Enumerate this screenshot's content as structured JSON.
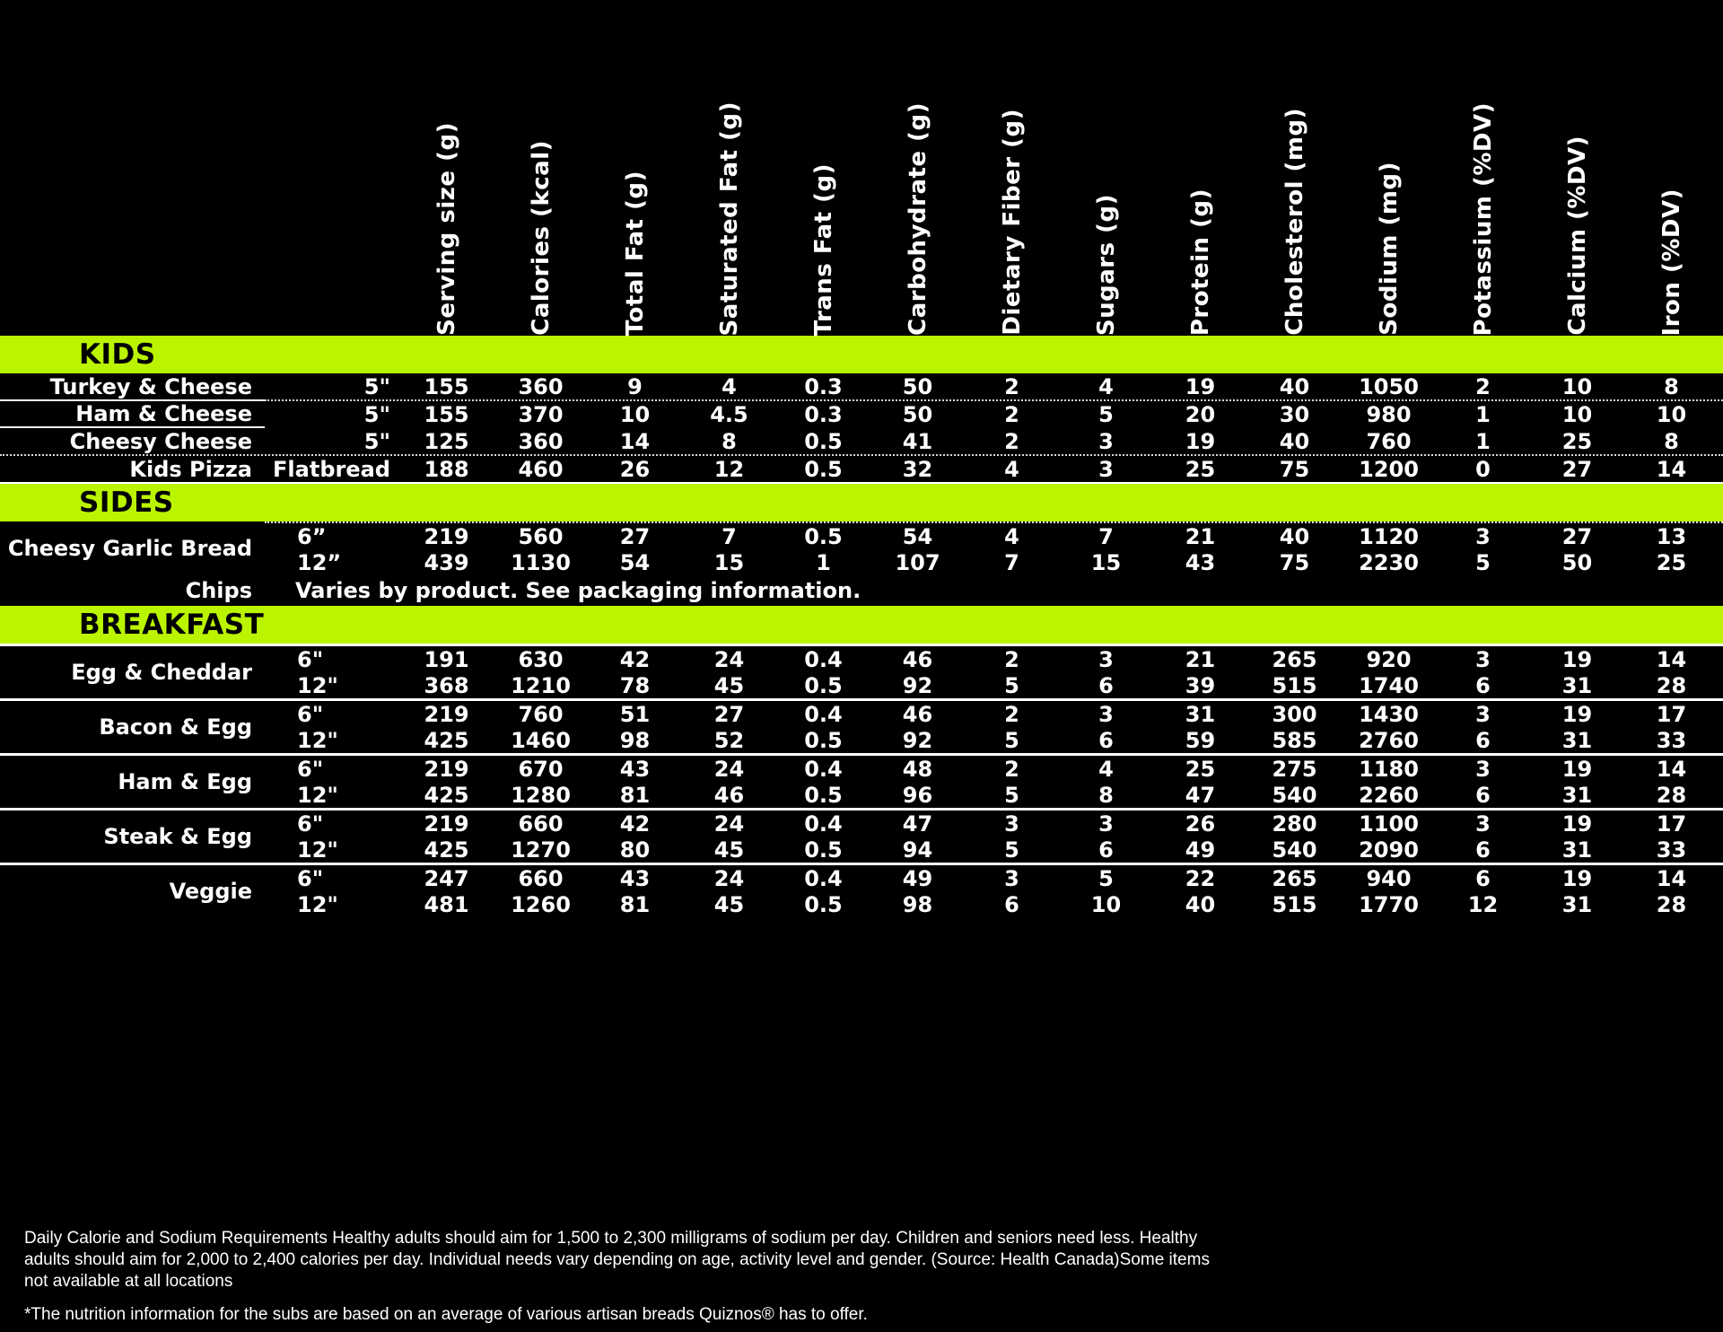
{
  "colors": {
    "background": "#000000",
    "section_bar": "#baf400",
    "section_title_text": "#000000",
    "table_text": "#ffffff"
  },
  "columns": [
    "Serving size (g)",
    "Calories (kcal)",
    "Total Fat (g)",
    "Saturated Fat (g)",
    "Trans Fat (g)",
    "Carbohydrate (g)",
    "Dietary Fiber (g)",
    "Sugars (g)",
    "Protein (g)",
    "Cholesterol (mg)",
    "Sodium (mg)",
    "Potassium (%DV)",
    "Calcium (%DV)",
    "Iron (%DV)"
  ],
  "sections": [
    {
      "id": "kids",
      "title": "KIDS",
      "groups": [
        {
          "label": "Turkey & Cheese",
          "rows": [
            {
              "size": "5\"",
              "values": [
                "155",
                "360",
                "9",
                "4",
                "0.3",
                "50",
                "2",
                "4",
                "19",
                "40",
                "1050",
                "2",
                "10",
                "8"
              ]
            }
          ]
        },
        {
          "label": "Ham & Cheese",
          "rows": [
            {
              "size": "5\"",
              "values": [
                "155",
                "370",
                "10",
                "4.5",
                "0.3",
                "50",
                "2",
                "5",
                "20",
                "30",
                "980",
                "1",
                "10",
                "10"
              ]
            }
          ]
        },
        {
          "label": "Cheesy Cheese",
          "rows": [
            {
              "size": "5\"",
              "values": [
                "125",
                "360",
                "14",
                "8",
                "0.5",
                "41",
                "2",
                "3",
                "19",
                "40",
                "760",
                "1",
                "25",
                "8"
              ]
            }
          ]
        },
        {
          "label": "Kids Pizza",
          "rows": [
            {
              "size": "Flatbread",
              "values": [
                "188",
                "460",
                "26",
                "12",
                "0.5",
                "32",
                "4",
                "3",
                "25",
                "75",
                "1200",
                "0",
                "27",
                "14"
              ]
            }
          ]
        }
      ]
    },
    {
      "id": "sides",
      "title": "SIDES",
      "groups": [
        {
          "label": "Cheesy Garlic Bread",
          "rows": [
            {
              "size": "6”",
              "values": [
                "219",
                "560",
                "27",
                "7",
                "0.5",
                "54",
                "4",
                "7",
                "21",
                "40",
                "1120",
                "3",
                "27",
                "13"
              ]
            },
            {
              "size": "12”",
              "values": [
                "439",
                "1130",
                "54",
                "15",
                "1",
                "107",
                "7",
                "15",
                "43",
                "75",
                "2230",
                "5",
                "50",
                "25"
              ]
            }
          ]
        },
        {
          "label": "Chips",
          "note": "Varies by product. See packaging information.",
          "rows": []
        }
      ]
    },
    {
      "id": "breakfast",
      "title": "BREAKFAST",
      "groups": [
        {
          "label": "Egg & Cheddar",
          "rows": [
            {
              "size": "6\"",
              "values": [
                "191",
                "630",
                "42",
                "24",
                "0.4",
                "46",
                "2",
                "3",
                "21",
                "265",
                "920",
                "3",
                "19",
                "14"
              ]
            },
            {
              "size": "12\"",
              "values": [
                "368",
                "1210",
                "78",
                "45",
                "0.5",
                "92",
                "5",
                "6",
                "39",
                "515",
                "1740",
                "6",
                "31",
                "28"
              ]
            }
          ]
        },
        {
          "label": "Bacon & Egg",
          "rows": [
            {
              "size": "6\"",
              "values": [
                "219",
                "760",
                "51",
                "27",
                "0.4",
                "46",
                "2",
                "3",
                "31",
                "300",
                "1430",
                "3",
                "19",
                "17"
              ]
            },
            {
              "size": "12\"",
              "values": [
                "425",
                "1460",
                "98",
                "52",
                "0.5",
                "92",
                "5",
                "6",
                "59",
                "585",
                "2760",
                "6",
                "31",
                "33"
              ]
            }
          ]
        },
        {
          "label": "Ham & Egg",
          "rows": [
            {
              "size": "6\"",
              "values": [
                "219",
                "670",
                "43",
                "24",
                "0.4",
                "48",
                "2",
                "4",
                "25",
                "275",
                "1180",
                "3",
                "19",
                "14"
              ]
            },
            {
              "size": "12\"",
              "values": [
                "425",
                "1280",
                "81",
                "46",
                "0.5",
                "96",
                "5",
                "8",
                "47",
                "540",
                "2260",
                "6",
                "31",
                "28"
              ]
            }
          ]
        },
        {
          "label": "Steak & Egg",
          "rows": [
            {
              "size": "6\"",
              "values": [
                "219",
                "660",
                "42",
                "24",
                "0.4",
                "47",
                "3",
                "3",
                "26",
                "280",
                "1100",
                "3",
                "19",
                "17"
              ]
            },
            {
              "size": "12\"",
              "values": [
                "425",
                "1270",
                "80",
                "45",
                "0.5",
                "94",
                "5",
                "6",
                "49",
                "540",
                "2090",
                "6",
                "31",
                "33"
              ]
            }
          ]
        },
        {
          "label": "Veggie",
          "rows": [
            {
              "size": "6\"",
              "values": [
                "247",
                "660",
                "43",
                "24",
                "0.4",
                "49",
                "3",
                "5",
                "22",
                "265",
                "940",
                "6",
                "19",
                "14"
              ]
            },
            {
              "size": "12\"",
              "values": [
                "481",
                "1260",
                "81",
                "45",
                "0.5",
                "98",
                "6",
                "10",
                "40",
                "515",
                "1770",
                "12",
                "31",
                "28"
              ]
            }
          ]
        }
      ]
    }
  ],
  "footer": {
    "disclaimer": "Daily Calorie and Sodium Requirements Healthy adults should aim for 1,500 to 2,300 milligrams of sodium per day. Children and seniors need less. Healthy adults should aim for 2,000 to 2,400 calories per day. Individual needs vary depending on age, activity level and gender. (Source: Health Canada)Some items not available at all locations",
    "note": "*The nutrition information for the subs are based on an average of various artisan breads Quiznos® has to offer."
  }
}
